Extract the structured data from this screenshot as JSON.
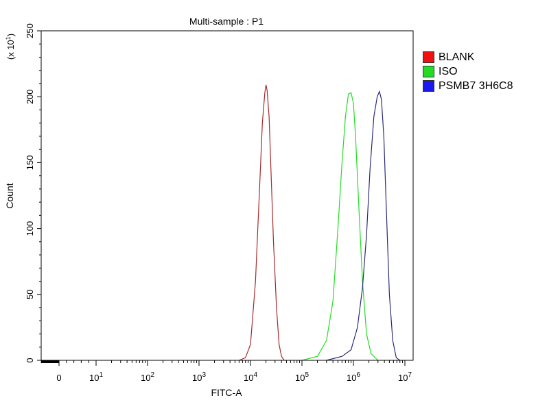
{
  "chart_data": {
    "type": "line",
    "title": "Multi-sample : P1",
    "xlabel": "FITC-A",
    "ylabel": "Count",
    "y_multiplier": "(x 10",
    "y_multiplier_exp": "1",
    "y_multiplier_close": ")",
    "x_scale": "biexponential",
    "xlim": [
      -250,
      15000000
    ],
    "ylim": [
      0,
      250
    ],
    "yticks": [
      {
        "value": 0,
        "label": "0"
      },
      {
        "value": 50,
        "label": "50"
      },
      {
        "value": 100,
        "label": "100"
      },
      {
        "value": 150,
        "label": "150"
      },
      {
        "value": 200,
        "label": "200"
      },
      {
        "value": 250,
        "label": "250"
      }
    ],
    "xticks": [
      {
        "value": 0,
        "base": "0",
        "exp": ""
      },
      {
        "value": 10,
        "base": "10",
        "exp": "1"
      },
      {
        "value": 100,
        "base": "10",
        "exp": "2"
      },
      {
        "value": 1000,
        "base": "10",
        "exp": "3"
      },
      {
        "value": 10000,
        "base": "10",
        "exp": "4"
      },
      {
        "value": 100000,
        "base": "10",
        "exp": "5"
      },
      {
        "value": 1000000,
        "base": "10",
        "exp": "6"
      },
      {
        "value": 10000000,
        "base": "10",
        "exp": "7"
      }
    ],
    "legend_position": "right",
    "series": [
      {
        "name": "BLANK",
        "color": "#a52a2a",
        "legend_color": "#ee1111",
        "points": [
          [
            6000,
            0
          ],
          [
            8000,
            2
          ],
          [
            10000,
            12
          ],
          [
            12500,
            60
          ],
          [
            15000,
            130
          ],
          [
            17000,
            180
          ],
          [
            19000,
            203
          ],
          [
            20000,
            209
          ],
          [
            21000,
            205
          ],
          [
            23000,
            185
          ],
          [
            25000,
            145
          ],
          [
            28000,
            90
          ],
          [
            32000,
            40
          ],
          [
            36000,
            12
          ],
          [
            40000,
            3
          ],
          [
            45000,
            0
          ]
        ]
      },
      {
        "name": "ISO",
        "color": "#22dd22",
        "legend_color": "#22dd22",
        "points": [
          [
            100000,
            0
          ],
          [
            200000,
            3
          ],
          [
            300000,
            15
          ],
          [
            400000,
            45
          ],
          [
            500000,
            100
          ],
          [
            600000,
            150
          ],
          [
            700000,
            185
          ],
          [
            800000,
            202
          ],
          [
            900000,
            203
          ],
          [
            1000000,
            195
          ],
          [
            1100000,
            170
          ],
          [
            1300000,
            110
          ],
          [
            1500000,
            60
          ],
          [
            1800000,
            20
          ],
          [
            2200000,
            5
          ],
          [
            3000000,
            0
          ]
        ]
      },
      {
        "name": "PSMB7 3H6C8",
        "color": "#2a2a7a",
        "legend_color": "#1a1aee",
        "points": [
          [
            300000,
            0
          ],
          [
            600000,
            3
          ],
          [
            900000,
            8
          ],
          [
            1200000,
            25
          ],
          [
            1500000,
            55
          ],
          [
            1800000,
            95
          ],
          [
            2100000,
            145
          ],
          [
            2500000,
            185
          ],
          [
            2900000,
            200
          ],
          [
            3200000,
            204
          ],
          [
            3500000,
            198
          ],
          [
            3900000,
            170
          ],
          [
            4400000,
            110
          ],
          [
            5000000,
            50
          ],
          [
            5800000,
            15
          ],
          [
            6800000,
            2
          ],
          [
            8000000,
            0
          ]
        ]
      }
    ]
  }
}
